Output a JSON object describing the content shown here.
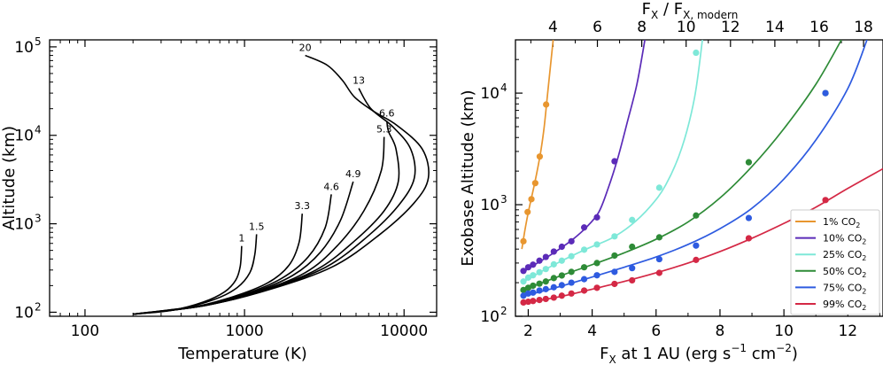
{
  "chart_data": [
    {
      "type": "line",
      "xlabel": "Temperature (K)",
      "ylabel": "Altitude (km)",
      "x_scale": "log",
      "y_scale": "log",
      "xlim": [
        60,
        16000
      ],
      "ylim": [
        90,
        120000
      ],
      "x_ticks": [
        {
          "v": 100,
          "label": "100"
        },
        {
          "v": 1000,
          "label": "1000"
        },
        {
          "v": 10000,
          "label": "10000"
        }
      ],
      "y_ticks": [
        {
          "v": 100,
          "base": "10",
          "exp": "2"
        },
        {
          "v": 1000,
          "base": "10",
          "exp": "3"
        },
        {
          "v": 10000,
          "base": "10",
          "exp": "4"
        },
        {
          "v": 100000,
          "base": "10",
          "exp": "5"
        }
      ],
      "series": [
        {
          "name": "1",
          "points": [
            [
              200,
              95
            ],
            [
              350,
              105
            ],
            [
              550,
              130
            ],
            [
              750,
              170
            ],
            [
              880,
              230
            ],
            [
              940,
              330
            ],
            [
              960,
              560
            ]
          ]
        },
        {
          "name": "1.5",
          "points": [
            [
              200,
              95
            ],
            [
              380,
              108
            ],
            [
              650,
              140
            ],
            [
              900,
              190
            ],
            [
              1080,
              280
            ],
            [
              1160,
              450
            ],
            [
              1190,
              760
            ]
          ]
        },
        {
          "name": "3.3",
          "points": [
            [
              200,
              95
            ],
            [
              450,
              112
            ],
            [
              850,
              150
            ],
            [
              1400,
              215
            ],
            [
              1900,
              340
            ],
            [
              2200,
              620
            ],
            [
              2300,
              1300
            ]
          ]
        },
        {
          "name": "4.6",
          "points": [
            [
              200,
              95
            ],
            [
              500,
              115
            ],
            [
              1000,
              160
            ],
            [
              1700,
              240
            ],
            [
              2500,
              420
            ],
            [
              3200,
              900
            ],
            [
              3500,
              2150
            ]
          ]
        },
        {
          "name": "4.9",
          "points": [
            [
              200,
              95
            ],
            [
              520,
              116
            ],
            [
              1100,
              165
            ],
            [
              2000,
              260
            ],
            [
              3000,
              480
            ],
            [
              4000,
              1100
            ],
            [
              4800,
              3000
            ]
          ]
        },
        {
          "name": "5.3",
          "points": [
            [
              200,
              95
            ],
            [
              550,
              118
            ],
            [
              1200,
              170
            ],
            [
              2400,
              280
            ],
            [
              3800,
              560
            ],
            [
              5600,
              1400
            ],
            [
              7200,
              4000
            ],
            [
              7500,
              9600
            ]
          ]
        },
        {
          "name": "6.6",
          "points": [
            [
              200,
              95
            ],
            [
              580,
              120
            ],
            [
              1300,
              175
            ],
            [
              2800,
              300
            ],
            [
              4800,
              620
            ],
            [
              7500,
              1400
            ],
            [
              9200,
              3000
            ],
            [
              8900,
              7000
            ],
            [
              8000,
              11000
            ],
            [
              7800,
              14500
            ]
          ]
        },
        {
          "name": "13",
          "points": [
            [
              200,
              95
            ],
            [
              600,
              122
            ],
            [
              1400,
              180
            ],
            [
              3200,
              320
            ],
            [
              5800,
              700
            ],
            [
              9200,
              1600
            ],
            [
              11600,
              3300
            ],
            [
              11000,
              7000
            ],
            [
              8500,
              12500
            ],
            [
              6200,
              20000
            ],
            [
              5200,
              34000
            ]
          ]
        },
        {
          "name": "20",
          "points": [
            [
              200,
              95
            ],
            [
              620,
              124
            ],
            [
              1500,
              185
            ],
            [
              3600,
              330
            ],
            [
              7000,
              750
            ],
            [
              11500,
              1700
            ],
            [
              14200,
              3300
            ],
            [
              13000,
              7000
            ],
            [
              9000,
              13000
            ],
            [
              6500,
              18500
            ],
            [
              4900,
              27000
            ],
            [
              4100,
              42000
            ],
            [
              3300,
              62000
            ],
            [
              2400,
              80000
            ]
          ]
        }
      ]
    },
    {
      "type": "line",
      "xlabel": "F",
      "xlabel_sub": "X",
      "xlabel_rest": " at 1 AU (erg s",
      "ylabel": "Exobase Altitude (km)",
      "top_xlabel": "F",
      "top_xlabel_sub1": "X",
      "top_xlabel_mid": " / F",
      "top_xlabel_sub2": "X, modern",
      "x_scale": "linear",
      "y_scale": "log",
      "xlim": [
        1.6,
        13.1
      ],
      "ylim": [
        100,
        30000
      ],
      "x_ticks": [
        2,
        4,
        6,
        8,
        10,
        12
      ],
      "top_ticks": [
        4,
        6,
        8,
        10,
        12,
        14,
        16,
        18
      ],
      "top_ratio_per_flux": 0.694,
      "y_ticks": [
        {
          "v": 100,
          "base": "10",
          "exp": "2"
        },
        {
          "v": 1000,
          "base": "10",
          "exp": "3"
        },
        {
          "v": 10000,
          "base": "10",
          "exp": "4"
        }
      ],
      "legend_position": "bottom-right",
      "series": [
        {
          "name": "1% CO",
          "sub": "2",
          "color": "#e8962f",
          "points": [
            [
              1.85,
              470
            ],
            [
              1.98,
              860
            ],
            [
              2.1,
              1120
            ],
            [
              2.22,
              1560
            ],
            [
              2.36,
              2700
            ],
            [
              2.56,
              7900
            ]
          ],
          "curve": [
            [
              1.8,
              400
            ],
            [
              1.9,
              600
            ],
            [
              2.0,
              850
            ],
            [
              2.1,
              1150
            ],
            [
              2.2,
              1550
            ],
            [
              2.3,
              2150
            ],
            [
              2.4,
              3100
            ],
            [
              2.5,
              5000
            ],
            [
              2.6,
              9500
            ],
            [
              2.7,
              18000
            ],
            [
              2.78,
              30000
            ]
          ]
        },
        {
          "name": "10% CO",
          "sub": "2",
          "color": "#5b2bb8",
          "points": [
            [
              1.85,
              255
            ],
            [
              2.0,
              275
            ],
            [
              2.15,
              290
            ],
            [
              2.35,
              315
            ],
            [
              2.55,
              340
            ],
            [
              2.8,
              380
            ],
            [
              3.05,
              420
            ],
            [
              3.35,
              470
            ],
            [
              3.75,
              625
            ],
            [
              4.15,
              770
            ],
            [
              4.7,
              2450
            ]
          ],
          "curve": [
            [
              1.8,
              245
            ],
            [
              2.2,
              290
            ],
            [
              2.6,
              340
            ],
            [
              3.0,
              405
            ],
            [
              3.4,
              490
            ],
            [
              3.8,
              620
            ],
            [
              4.2,
              850
            ],
            [
              4.5,
              1400
            ],
            [
              4.8,
              2600
            ],
            [
              5.1,
              5500
            ],
            [
              5.4,
              12000
            ],
            [
              5.65,
              30000
            ]
          ]
        },
        {
          "name": "25% CO",
          "sub": "2",
          "color": "#7ee8d8",
          "points": [
            [
              1.85,
              205
            ],
            [
              2.0,
              222
            ],
            [
              2.15,
              233
            ],
            [
              2.35,
              248
            ],
            [
              2.55,
              265
            ],
            [
              2.8,
              292
            ],
            [
              3.05,
              315
            ],
            [
              3.35,
              345
            ],
            [
              3.75,
              395
            ],
            [
              4.15,
              440
            ],
            [
              4.7,
              520
            ],
            [
              5.25,
              730
            ],
            [
              6.1,
              1420
            ],
            [
              7.25,
              23000
            ]
          ],
          "curve": [
            [
              1.8,
              200
            ],
            [
              2.5,
              260
            ],
            [
              3.2,
              330
            ],
            [
              3.9,
              410
            ],
            [
              4.6,
              500
            ],
            [
              5.2,
              650
            ],
            [
              5.8,
              950
            ],
            [
              6.3,
              1500
            ],
            [
              6.8,
              3200
            ],
            [
              7.2,
              9000
            ],
            [
              7.45,
              30000
            ]
          ]
        },
        {
          "name": "50% CO",
          "sub": "2",
          "color": "#2e8b37",
          "points": [
            [
              1.85,
              172
            ],
            [
              2.0,
              180
            ],
            [
              2.15,
              188
            ],
            [
              2.35,
              196
            ],
            [
              2.55,
              205
            ],
            [
              2.8,
              220
            ],
            [
              3.05,
              232
            ],
            [
              3.35,
              250
            ],
            [
              3.75,
              275
            ],
            [
              4.15,
              300
            ],
            [
              4.7,
              350
            ],
            [
              5.25,
              420
            ],
            [
              6.1,
              510
            ],
            [
              7.25,
              800
            ],
            [
              8.9,
              2400
            ],
            [
              11.3,
              10000
            ]
          ],
          "curve": [
            [
              1.8,
              170
            ],
            [
              3.0,
              230
            ],
            [
              4.0,
              290
            ],
            [
              5.0,
              370
            ],
            [
              6.0,
              490
            ],
            [
              7.0,
              700
            ],
            [
              8.0,
              1150
            ],
            [
              9.0,
              2200
            ],
            [
              10.0,
              4800
            ],
            [
              11.0,
              12000
            ],
            [
              11.8,
              30000
            ]
          ]
        },
        {
          "name": "75% CO",
          "sub": "2",
          "color": "#2e5be0",
          "points": [
            [
              1.85,
              153
            ],
            [
              2.0,
              160
            ],
            [
              2.15,
              163
            ],
            [
              2.35,
              170
            ],
            [
              2.55,
              175
            ],
            [
              2.8,
              182
            ],
            [
              3.05,
              190
            ],
            [
              3.35,
              200
            ],
            [
              3.75,
              215
            ],
            [
              4.15,
              233
            ],
            [
              4.7,
              250
            ],
            [
              5.25,
              270
            ],
            [
              6.1,
              325
            ],
            [
              7.25,
              430
            ],
            [
              8.9,
              760
            ],
            [
              11.3,
              10000
            ]
          ],
          "curve": [
            [
              1.8,
              150
            ],
            [
              3.0,
              185
            ],
            [
              4.0,
              225
            ],
            [
              5.0,
              275
            ],
            [
              6.0,
              340
            ],
            [
              7.0,
              440
            ],
            [
              8.0,
              610
            ],
            [
              9.0,
              930
            ],
            [
              10.0,
              1700
            ],
            [
              11.0,
              3800
            ],
            [
              12.0,
              11000
            ],
            [
              12.6,
              30000
            ]
          ]
        },
        {
          "name": "99% CO",
          "sub": "2",
          "color": "#d42845",
          "points": [
            [
              1.85,
              133
            ],
            [
              2.0,
              135
            ],
            [
              2.15,
              137
            ],
            [
              2.35,
              140
            ],
            [
              2.55,
              143
            ],
            [
              2.8,
              147
            ],
            [
              3.05,
              153
            ],
            [
              3.35,
              160
            ],
            [
              3.75,
              170
            ],
            [
              4.15,
              180
            ],
            [
              4.7,
              195
            ],
            [
              5.25,
              210
            ],
            [
              6.1,
              245
            ],
            [
              7.25,
              320
            ],
            [
              8.9,
              500
            ],
            [
              11.3,
              1100
            ]
          ],
          "curve": [
            [
              1.8,
              130
            ],
            [
              3.0,
              150
            ],
            [
              4.0,
              175
            ],
            [
              5.0,
              205
            ],
            [
              6.0,
              245
            ],
            [
              7.0,
              300
            ],
            [
              8.0,
              380
            ],
            [
              9.0,
              500
            ],
            [
              10.0,
              680
            ],
            [
              11.0,
              950
            ],
            [
              12.0,
              1400
            ],
            [
              13.1,
              2100
            ]
          ]
        }
      ]
    }
  ]
}
